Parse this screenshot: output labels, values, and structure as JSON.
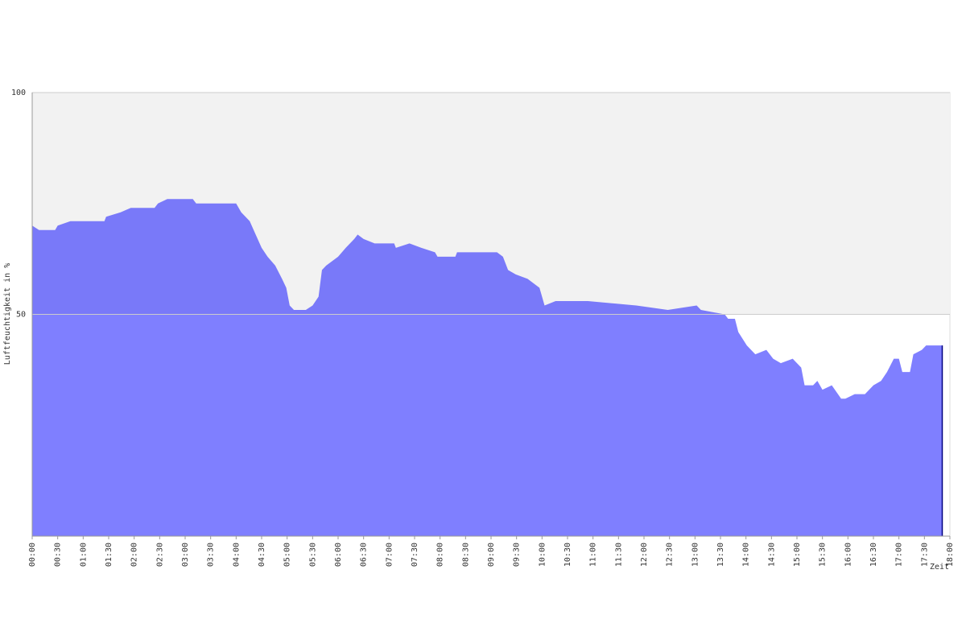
{
  "chart_data": {
    "type": "area",
    "y_label": "Luftfeuchtigkeit in %",
    "x_label": "Zeit",
    "color": "#0000ff",
    "xlim": [
      "00:00",
      "18:00"
    ],
    "xticks": [
      "00:00",
      "00:30",
      "01:00",
      "01:30",
      "02:00",
      "02:30",
      "03:00",
      "03:30",
      "04:00",
      "04:30",
      "05:00",
      "05:30",
      "06:00",
      "06:30",
      "07:00",
      "07:30",
      "08:00",
      "08:30",
      "09:00",
      "09:30",
      "10:00",
      "10:30",
      "11:00",
      "11:30",
      "12:00",
      "12:30",
      "13:00",
      "13:30",
      "14:00",
      "14:30",
      "15:00",
      "15:30",
      "16:00",
      "16:30",
      "17:00",
      "17:30",
      "18:00"
    ],
    "ylim": [
      0,
      100
    ],
    "yticks": [
      50,
      100
    ],
    "grid": true,
    "x": [
      "00:00",
      "00:08",
      "00:27",
      "00:30",
      "00:45",
      "01:25",
      "01:27",
      "01:44",
      "01:56",
      "02:24",
      "02:28",
      "02:39",
      "03:09",
      "03:13",
      "04:00",
      "04:06",
      "04:16",
      "04:23",
      "04:30",
      "04:37",
      "04:46",
      "04:54",
      "04:59",
      "05:03",
      "05:08",
      "05:22",
      "05:30",
      "05:37",
      "05:41",
      "05:46",
      "06:00",
      "06:09",
      "06:19",
      "06:23",
      "06:30",
      "06:43",
      "07:06",
      "07:08",
      "07:24",
      "07:38",
      "07:54",
      "07:57",
      "08:18",
      "08:20",
      "09:07",
      "09:14",
      "09:20",
      "09:29",
      "09:43",
      "09:57",
      "10:03",
      "10:16",
      "10:25",
      "10:54",
      "11:51",
      "12:28",
      "13:02",
      "13:07",
      "13:35",
      "13:39",
      "13:47",
      "13:51",
      "14:01",
      "14:11",
      "14:24",
      "14:32",
      "14:41",
      "14:55",
      "15:05",
      "15:09",
      "15:19",
      "15:24",
      "15:30",
      "15:41",
      "15:52",
      "15:57",
      "16:08",
      "16:20",
      "16:30",
      "16:39",
      "16:46",
      "16:54",
      "17:00",
      "17:04",
      "17:13",
      "17:17",
      "17:27",
      "17:32",
      "17:51"
    ],
    "values": [
      70,
      69,
      69,
      70,
      71,
      71,
      72,
      73,
      74,
      74,
      75,
      76,
      76,
      75,
      75,
      73,
      71,
      68,
      65,
      63,
      61,
      58,
      56,
      52,
      51,
      51,
      52,
      54,
      60,
      61,
      63,
      65,
      67,
      68,
      67,
      66,
      66,
      65,
      66,
      65,
      64,
      63,
      63,
      64,
      64,
      63,
      60,
      59,
      58,
      56,
      52,
      53,
      53,
      53,
      52,
      51,
      52,
      51,
      50,
      49,
      49,
      46,
      43,
      41,
      42,
      40,
      39,
      40,
      38,
      34,
      34,
      35,
      33,
      34,
      31,
      31,
      32,
      32,
      34,
      35,
      37,
      40,
      40,
      37,
      37,
      41,
      42,
      43,
      43
    ]
  }
}
